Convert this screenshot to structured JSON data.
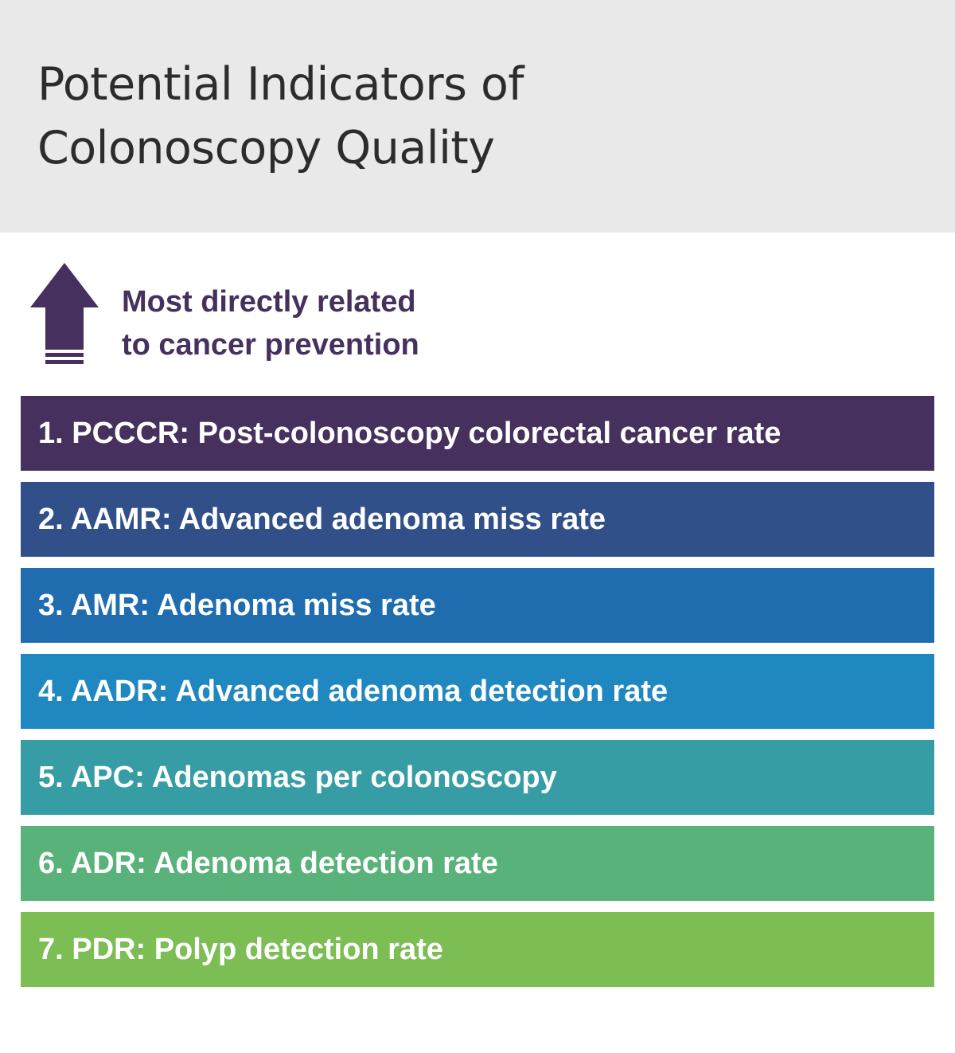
{
  "header": {
    "title_line1": "Potential Indicators of",
    "title_line2": "Colonoscopy Quality"
  },
  "legend": {
    "icon": "up-arrow-icon",
    "line1": "Most directly related",
    "line2": "to cancer prevention",
    "color": "#46305e"
  },
  "indicators": [
    {
      "label": "1. PCCCR: Post-colonoscopy colorectal cancer rate",
      "color": "#46305e"
    },
    {
      "label": "2. AAMR: Advanced adenoma miss rate",
      "color": "#315089"
    },
    {
      "label": "3. AMR: Adenoma miss rate",
      "color": "#1f6caf"
    },
    {
      "label": "4. AADR: Advanced adenoma detection rate",
      "color": "#1f88c0"
    },
    {
      "label": "5. APC: Adenomas per colonoscopy",
      "color": "#379da5"
    },
    {
      "label": "6. ADR: Adenoma detection rate",
      "color": "#59b27a"
    },
    {
      "label": "7. PDR: Polyp detection rate",
      "color": "#7cbd54"
    }
  ]
}
